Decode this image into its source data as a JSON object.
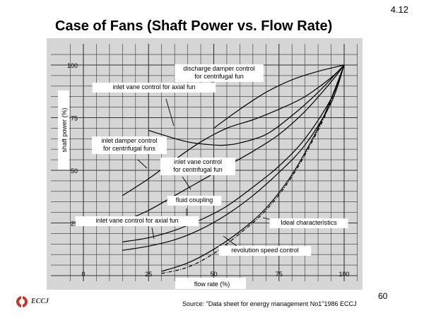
{
  "slide": {
    "title": "Case of Fans (Shaft Power vs. Flow Rate)",
    "slide_number": "4.12",
    "page_number": "60",
    "source": "Source: \"Data sheet for energy management No1\"1986 ECCJ",
    "logo_text": "ECCJ"
  },
  "chart_data": {
    "type": "line",
    "title": "",
    "xlabel": "flow rate    (%)",
    "ylabel": "shaft power  (%)",
    "xlim": [
      0,
      100
    ],
    "ylim": [
      0,
      100
    ],
    "x_ticks": [
      0,
      25,
      50,
      75,
      100
    ],
    "y_ticks": [
      25,
      50,
      75,
      100
    ],
    "grid": true,
    "series": [
      {
        "name": "discharge damper control for centrifugal fun",
        "label_lines": [
          "discharge damper control",
          "for centrifugal fun"
        ],
        "points": [
          [
            50,
            70
          ],
          [
            60,
            79
          ],
          [
            70,
            87
          ],
          [
            80,
            93
          ],
          [
            90,
            97
          ],
          [
            100,
            100
          ]
        ]
      },
      {
        "name": "inlet vane control for axial fun (upper)",
        "label_lines": [
          "inlet  vane  control for axial fun"
        ],
        "points": [
          [
            25,
            69
          ],
          [
            30,
            67
          ],
          [
            40,
            63.5
          ],
          [
            50,
            62
          ],
          [
            55,
            62
          ],
          [
            60,
            63
          ],
          [
            70,
            67
          ],
          [
            80,
            76
          ],
          [
            90,
            87
          ],
          [
            100,
            100
          ]
        ]
      },
      {
        "name": "inlet damper control for centrifugal funs",
        "label_lines": [
          "inlet damper control",
          "for centrifugal funs"
        ],
        "points": [
          [
            15,
            38
          ],
          [
            25,
            46
          ],
          [
            35,
            55
          ],
          [
            45,
            63.5
          ],
          [
            55,
            70
          ],
          [
            65,
            74
          ],
          [
            75,
            79
          ],
          [
            85,
            85
          ],
          [
            95,
            94
          ],
          [
            100,
            100
          ]
        ]
      },
      {
        "name": "inlet vane control for centrifugal fun",
        "label_lines": [
          "inlet  vane  control",
          "for centrifugal fun"
        ],
        "points": [
          [
            15,
            25.5
          ],
          [
            25,
            31
          ],
          [
            35,
            38
          ],
          [
            45,
            45
          ],
          [
            55,
            52
          ],
          [
            65,
            59
          ],
          [
            75,
            67
          ],
          [
            85,
            78
          ],
          [
            95,
            92
          ],
          [
            100,
            100
          ]
        ]
      },
      {
        "name": "fluid coupling",
        "label_lines": [
          "fluid coupling"
        ],
        "points": [
          [
            15,
            16
          ],
          [
            25,
            18
          ],
          [
            35,
            21.5
          ],
          [
            45,
            26.5
          ],
          [
            55,
            33
          ],
          [
            65,
            42
          ],
          [
            75,
            52
          ],
          [
            85,
            65
          ],
          [
            95,
            84
          ],
          [
            100,
            100
          ]
        ]
      },
      {
        "name": "inlet vane control for axial fun (lower)",
        "label_lines": [
          "inlet  vane  control for axial fun"
        ],
        "points": [
          [
            15,
            12
          ],
          [
            25,
            14
          ],
          [
            35,
            17
          ],
          [
            45,
            22
          ],
          [
            55,
            29
          ],
          [
            65,
            38
          ],
          [
            75,
            49
          ],
          [
            85,
            62
          ],
          [
            95,
            82
          ],
          [
            100,
            100
          ]
        ]
      },
      {
        "name": "revolution speed control",
        "label_lines": [
          "revolution speed  control"
        ],
        "points": [
          [
            30,
            2
          ],
          [
            40,
            6
          ],
          [
            50,
            12.5
          ],
          [
            60,
            21
          ],
          [
            70,
            32
          ],
          [
            80,
            48
          ],
          [
            90,
            70
          ],
          [
            95,
            84
          ],
          [
            100,
            100
          ]
        ]
      },
      {
        "name": "ideal characteristics",
        "label_lines": [
          "Ideal characteristics"
        ],
        "dashed": true,
        "points": [
          [
            30,
            1
          ],
          [
            40,
            4
          ],
          [
            50,
            10.5
          ],
          [
            60,
            20
          ],
          [
            70,
            31
          ],
          [
            80,
            47
          ],
          [
            90,
            69
          ],
          [
            95,
            83
          ],
          [
            100,
            100
          ]
        ]
      }
    ]
  }
}
